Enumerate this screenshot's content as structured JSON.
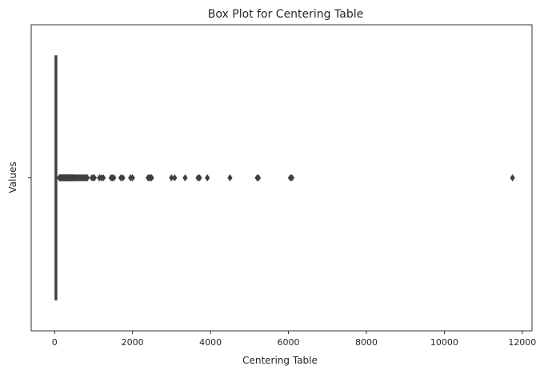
{
  "chart_data": {
    "type": "box",
    "orientation": "horizontal",
    "title": "Box Plot for Centering Table",
    "xlabel": "Centering Table",
    "ylabel": "Values",
    "xlim": [
      -600,
      12250
    ],
    "x_ticks": [
      0,
      2000,
      4000,
      6000,
      8000,
      10000,
      12000
    ],
    "x_tick_labels": [
      "0",
      "2000",
      "4000",
      "6000",
      "8000",
      "10000",
      "12000"
    ],
    "y_tick_labels": [
      ""
    ],
    "grid": false,
    "box": {
      "whisker_low": 0,
      "q1": 15,
      "median": 30,
      "q3": 55,
      "whisker_high": 115
    },
    "outliers": [
      120,
      130,
      140,
      150,
      160,
      170,
      180,
      190,
      200,
      210,
      220,
      230,
      240,
      250,
      260,
      270,
      280,
      290,
      300,
      310,
      320,
      330,
      340,
      350,
      360,
      370,
      380,
      390,
      400,
      410,
      420,
      430,
      440,
      450,
      460,
      470,
      480,
      490,
      500,
      520,
      540,
      560,
      580,
      600,
      620,
      640,
      660,
      680,
      700,
      720,
      740,
      760,
      780,
      800,
      820,
      840,
      960,
      1000,
      1020,
      1150,
      1200,
      1250,
      1450,
      1480,
      1520,
      1700,
      1750,
      1950,
      2000,
      2400,
      2430,
      2460,
      2490,
      3000,
      3080,
      3350,
      3680,
      3720,
      3920,
      4500,
      5200,
      5230,
      6050,
      6090,
      11750
    ],
    "box_color": "#3a75b0",
    "line_color": "#3f3f3f"
  }
}
